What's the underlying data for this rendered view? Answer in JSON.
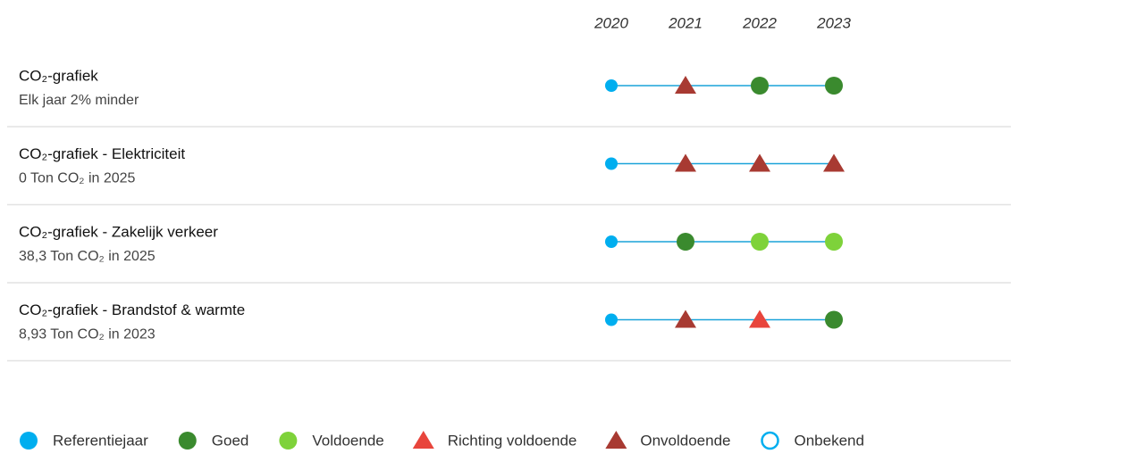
{
  "years": [
    "2020",
    "2021",
    "2022",
    "2023"
  ],
  "rows": [
    {
      "title": "CO₂-grafiek",
      "subtitle": "Elk jaar 2% minder",
      "statuses": [
        "Referentiejaar",
        "Onvoldoende",
        "Goed",
        "Goed"
      ]
    },
    {
      "title": "CO₂-grafiek - Elektriciteit",
      "subtitle": "0 Ton CO₂ in 2025",
      "statuses": [
        "Referentiejaar",
        "Onvoldoende",
        "Onvoldoende",
        "Onvoldoende"
      ]
    },
    {
      "title": "CO₂-grafiek - Zakelijk verkeer",
      "subtitle": "38,3 Ton CO₂ in 2025",
      "statuses": [
        "Referentiejaar",
        "Goed",
        "Voldoende",
        "Voldoende"
      ]
    },
    {
      "title": "CO₂-grafiek - Brandstof & warmte",
      "subtitle": "8,93 Ton CO₂ in 2023",
      "statuses": [
        "Referentiejaar",
        "Onvoldoende",
        "Richting voldoende",
        "Goed"
      ]
    }
  ],
  "line_color": "#1aa3d9",
  "legend": [
    {
      "label": "Referentiejaar",
      "shape": "circle",
      "color": "#00aeef"
    },
    {
      "label": "Goed",
      "shape": "circle",
      "color": "#3a8a2e"
    },
    {
      "label": "Voldoende",
      "shape": "circle",
      "color": "#7ed23a"
    },
    {
      "label": "Richting voldoende",
      "shape": "triangle",
      "color": "#e8453c"
    },
    {
      "label": "Onvoldoende",
      "shape": "triangle",
      "color": "#a83a32"
    },
    {
      "label": "Onbekend",
      "shape": "ring",
      "color": "#00aeef"
    }
  ]
}
